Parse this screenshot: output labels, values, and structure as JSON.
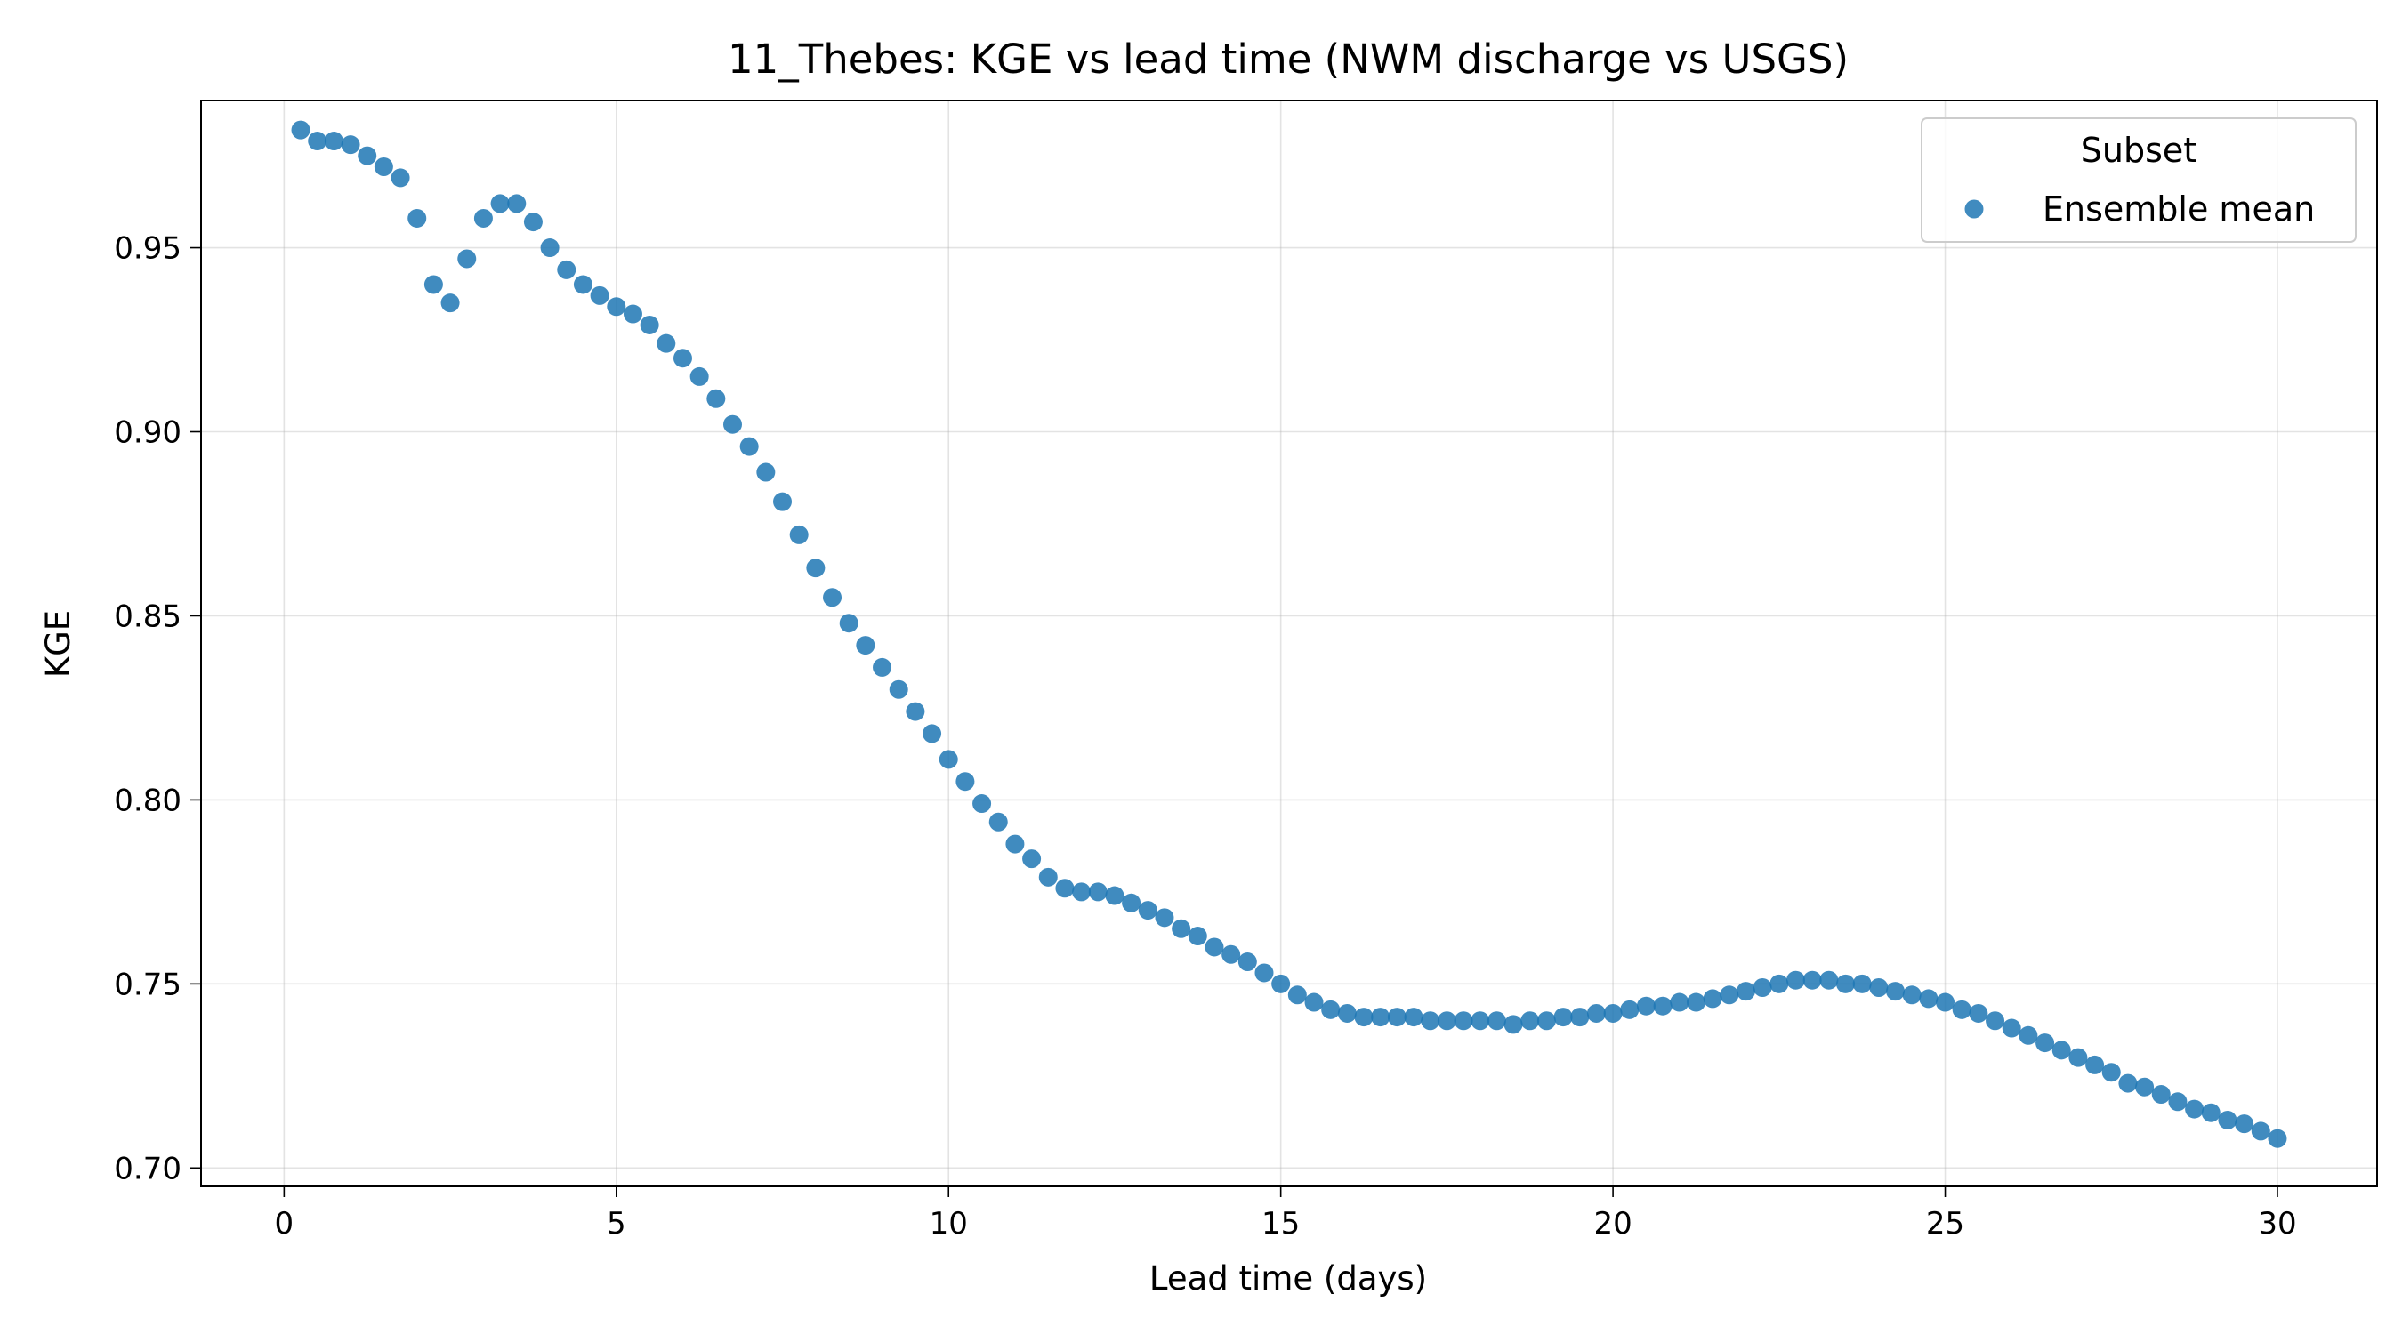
{
  "chart_data": {
    "type": "scatter",
    "title": "11_Thebes: KGE vs lead time (NWM discharge vs USGS)",
    "xlabel": "Lead time (days)",
    "ylabel": "KGE",
    "xlim": [
      -1.25,
      31.5
    ],
    "ylim": [
      0.695,
      0.99
    ],
    "xticks": [
      0,
      5,
      10,
      15,
      20,
      25,
      30
    ],
    "xtick_labels": [
      "0",
      "5",
      "10",
      "15",
      "20",
      "25",
      "30"
    ],
    "yticks": [
      0.7,
      0.75,
      0.8,
      0.85,
      0.9,
      0.95
    ],
    "ytick_labels": [
      "0.70",
      "0.75",
      "0.80",
      "0.85",
      "0.90",
      "0.95"
    ],
    "grid": true,
    "legend": {
      "title": "Subset",
      "placement": "top-right"
    },
    "series": [
      {
        "name": "Ensemble mean",
        "color": "#1f77b4",
        "x": [
          0.25,
          0.5,
          0.75,
          1.0,
          1.25,
          1.5,
          1.75,
          2.0,
          2.25,
          2.5,
          2.75,
          3.0,
          3.25,
          3.5,
          3.75,
          4.0,
          4.25,
          4.5,
          4.75,
          5.0,
          5.25,
          5.5,
          5.75,
          6.0,
          6.25,
          6.5,
          6.75,
          7.0,
          7.25,
          7.5,
          7.75,
          8.0,
          8.25,
          8.5,
          8.75,
          9.0,
          9.25,
          9.5,
          9.75,
          10.0,
          10.25,
          10.5,
          10.75,
          11.0,
          11.25,
          11.5,
          11.75,
          12.0,
          12.25,
          12.5,
          12.75,
          13.0,
          13.25,
          13.5,
          13.75,
          14.0,
          14.25,
          14.5,
          14.75,
          15.0,
          15.25,
          15.5,
          15.75,
          16.0,
          16.25,
          16.5,
          16.75,
          17.0,
          17.25,
          17.5,
          17.75,
          18.0,
          18.25,
          18.5,
          18.75,
          19.0,
          19.25,
          19.5,
          19.75,
          20.0,
          20.25,
          20.5,
          20.75,
          21.0,
          21.25,
          21.5,
          21.75,
          22.0,
          22.25,
          22.5,
          22.75,
          23.0,
          23.25,
          23.5,
          23.75,
          24.0,
          24.25,
          24.5,
          24.75,
          25.0,
          25.25,
          25.5,
          25.75,
          26.0,
          26.25,
          26.5,
          26.75,
          27.0,
          27.25,
          27.5,
          27.75,
          28.0,
          28.25,
          28.5,
          28.75,
          29.0,
          29.25,
          29.5,
          29.75,
          30.0
        ],
        "y": [
          0.982,
          0.979,
          0.979,
          0.978,
          0.975,
          0.972,
          0.969,
          0.958,
          0.94,
          0.935,
          0.947,
          0.958,
          0.962,
          0.962,
          0.957,
          0.95,
          0.944,
          0.94,
          0.937,
          0.934,
          0.932,
          0.929,
          0.924,
          0.92,
          0.915,
          0.909,
          0.902,
          0.896,
          0.889,
          0.881,
          0.872,
          0.863,
          0.855,
          0.848,
          0.842,
          0.836,
          0.83,
          0.824,
          0.818,
          0.811,
          0.805,
          0.799,
          0.794,
          0.788,
          0.784,
          0.779,
          0.776,
          0.775,
          0.775,
          0.774,
          0.772,
          0.77,
          0.768,
          0.765,
          0.763,
          0.76,
          0.758,
          0.756,
          0.753,
          0.75,
          0.747,
          0.745,
          0.743,
          0.742,
          0.741,
          0.741,
          0.741,
          0.741,
          0.74,
          0.74,
          0.74,
          0.74,
          0.74,
          0.739,
          0.74,
          0.74,
          0.741,
          0.741,
          0.742,
          0.742,
          0.743,
          0.744,
          0.744,
          0.745,
          0.745,
          0.746,
          0.747,
          0.748,
          0.749,
          0.75,
          0.751,
          0.751,
          0.751,
          0.75,
          0.75,
          0.749,
          0.748,
          0.747,
          0.746,
          0.745,
          0.743,
          0.742,
          0.74,
          0.738,
          0.736,
          0.734,
          0.732,
          0.73,
          0.728,
          0.726,
          0.723,
          0.722,
          0.72,
          0.718,
          0.716,
          0.715,
          0.713,
          0.712,
          0.71,
          0.708
        ]
      }
    ]
  }
}
